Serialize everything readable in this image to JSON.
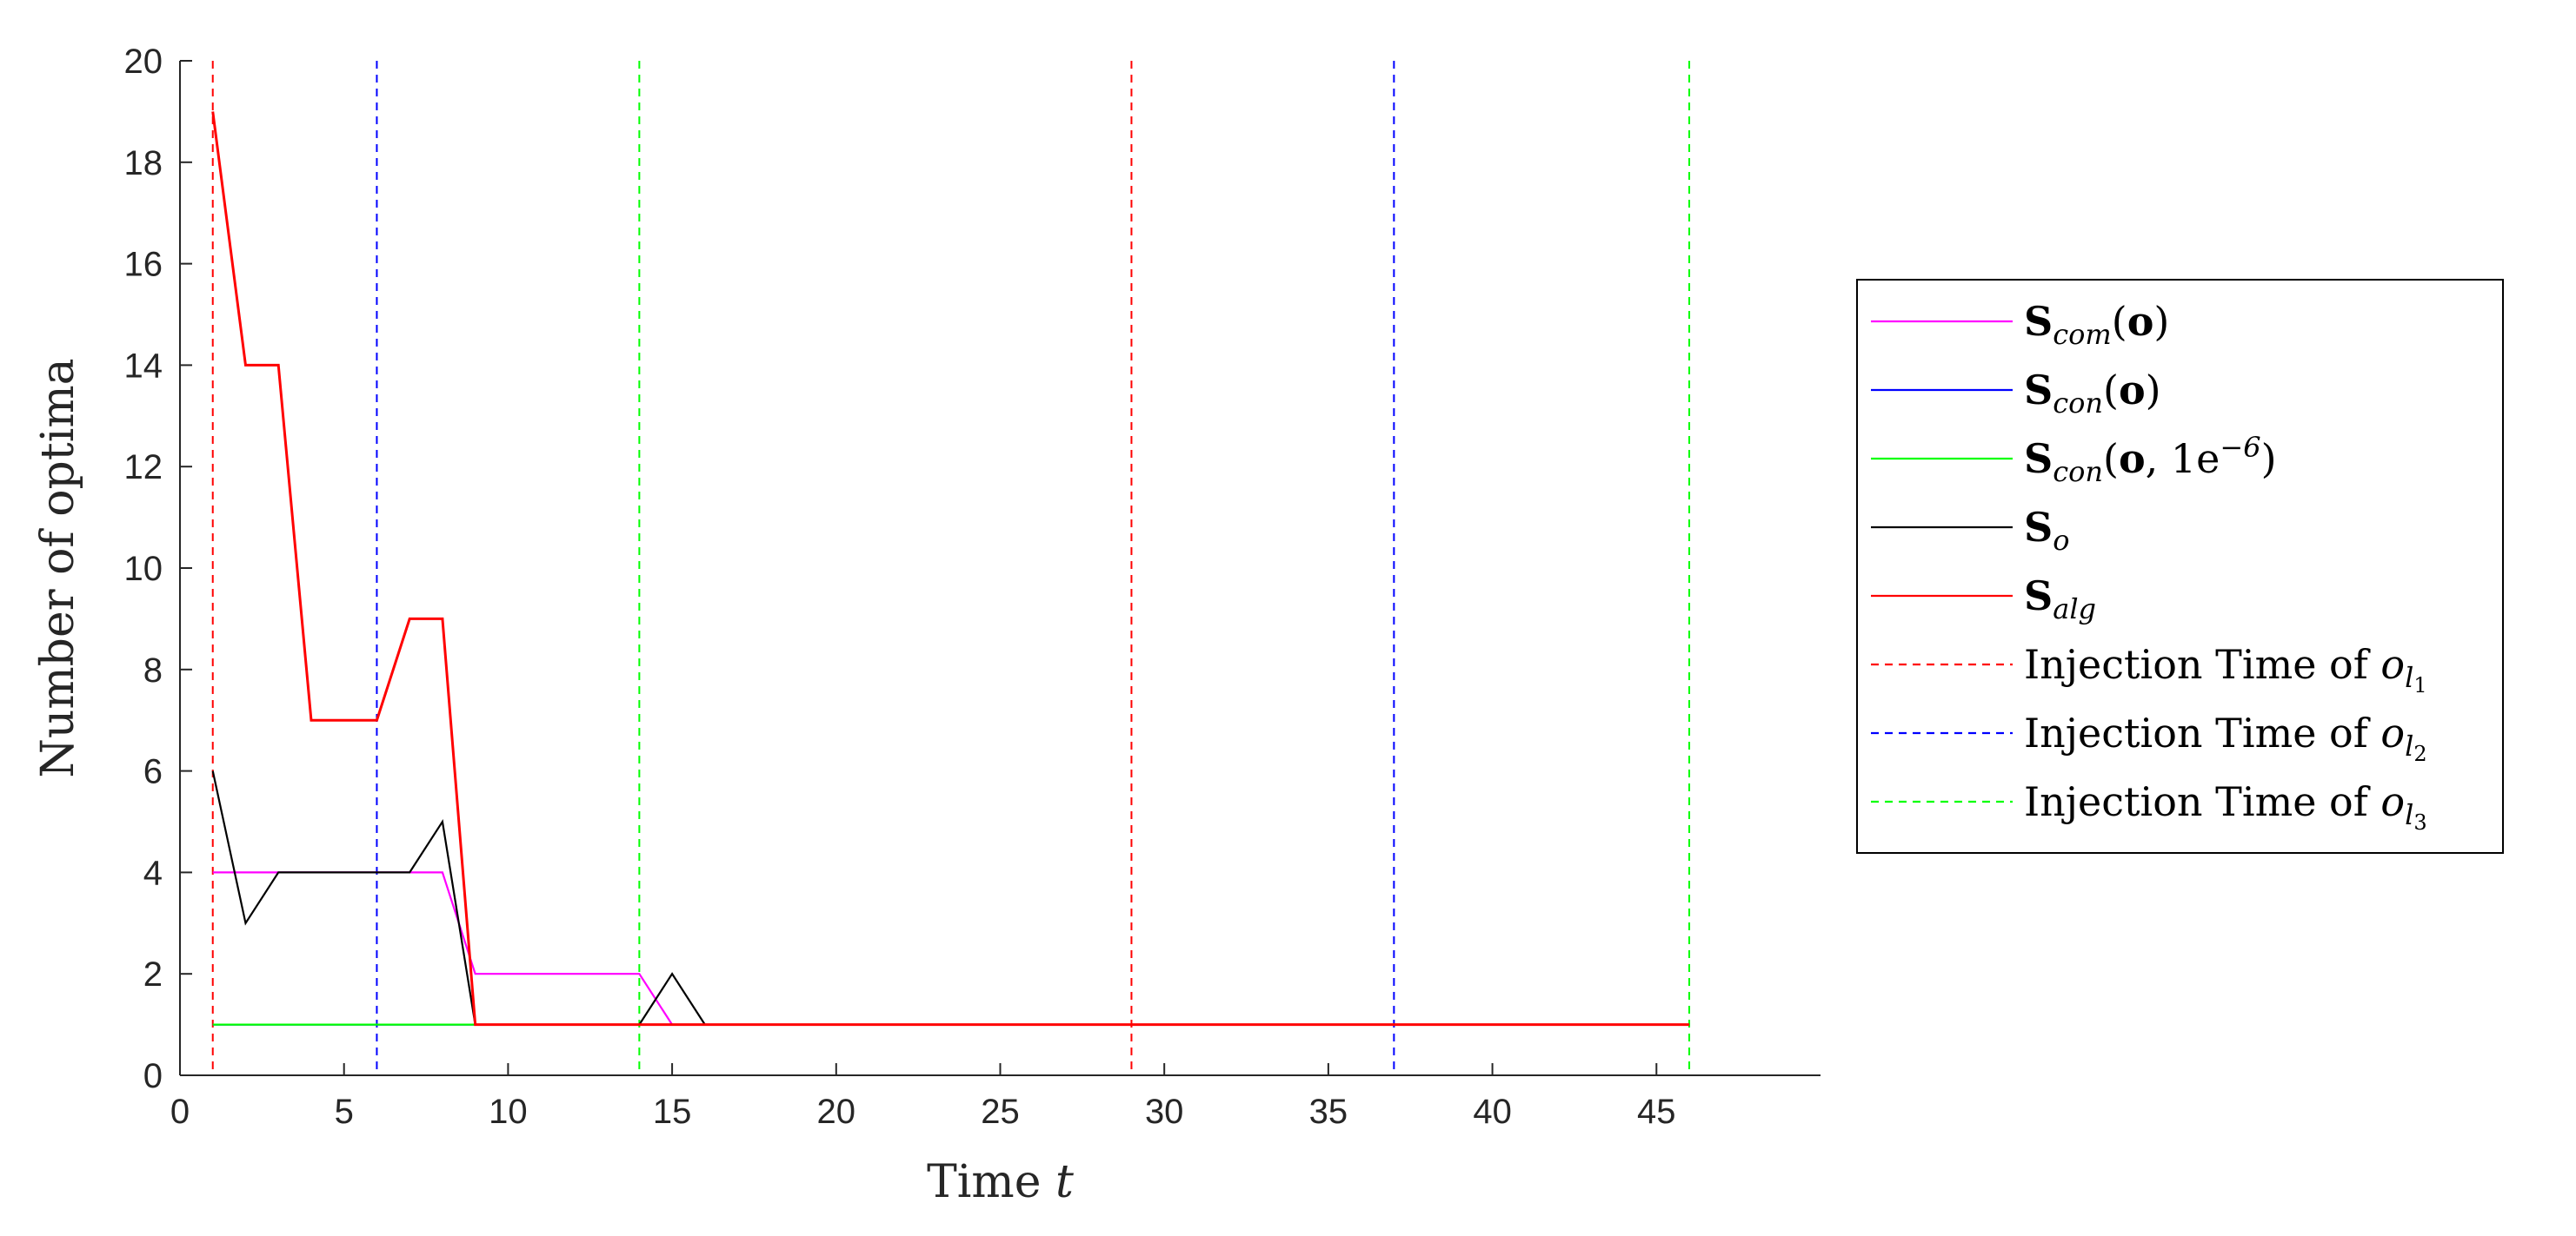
{
  "chart_data": {
    "type": "line",
    "xlabel_text": "Time",
    "xlabel_var": "t",
    "ylabel": "Number of optima",
    "xlim": [
      0,
      50
    ],
    "ylim": [
      0,
      20
    ],
    "xticks": [
      0,
      5,
      10,
      15,
      20,
      25,
      30,
      35,
      40,
      45
    ],
    "yticks": [
      0,
      2,
      4,
      6,
      8,
      10,
      12,
      14,
      16,
      18,
      20
    ],
    "grid": false,
    "legend_position": "outside-right",
    "series": [
      {
        "name": "S_com(o)",
        "color": "#ff00ff",
        "style": "solid",
        "x": [
          1,
          2,
          3,
          4,
          5,
          6,
          7,
          8,
          9,
          10,
          11,
          12,
          13,
          14,
          15,
          16,
          46
        ],
        "y": [
          4,
          4,
          4,
          4,
          4,
          4,
          4,
          4,
          2,
          2,
          2,
          2,
          2,
          2,
          1,
          1,
          1
        ]
      },
      {
        "name": "S_con(o)",
        "color": "#0000ff",
        "style": "solid",
        "x": [
          1,
          46
        ],
        "y": [
          1,
          1
        ]
      },
      {
        "name": "S_con(o, 1e^-6)",
        "color": "#00ff00",
        "style": "solid",
        "x": [
          1,
          46
        ],
        "y": [
          1,
          1
        ]
      },
      {
        "name": "S_o",
        "color": "#000000",
        "style": "solid",
        "x": [
          1,
          2,
          3,
          4,
          5,
          6,
          7,
          8,
          9,
          10,
          11,
          12,
          13,
          14,
          15,
          16,
          46
        ],
        "y": [
          6,
          3,
          4,
          4,
          4,
          4,
          4,
          5,
          1,
          1,
          1,
          1,
          1,
          1,
          2,
          1,
          1
        ]
      },
      {
        "name": "S_alg",
        "color": "#ff0000",
        "style": "solid",
        "x": [
          1,
          2,
          3,
          4,
          5,
          6,
          7,
          8,
          9,
          10,
          46
        ],
        "y": [
          19,
          14,
          14,
          7,
          7,
          7,
          9,
          9,
          1,
          1,
          1
        ]
      }
    ],
    "vlines": [
      {
        "name": "Injection Time of o_l1",
        "color": "#ff0000",
        "x": [
          1,
          29
        ]
      },
      {
        "name": "Injection Time of o_l2",
        "color": "#0000ff",
        "x": [
          6,
          37
        ]
      },
      {
        "name": "Injection Time of o_l3",
        "color": "#00ff00",
        "x": [
          14,
          46
        ]
      }
    ],
    "legend": [
      {
        "color": "#ff00ff",
        "dashed": false,
        "bold": "S",
        "sub": "com",
        "tail": "(o)"
      },
      {
        "color": "#0000ff",
        "dashed": false,
        "bold": "S",
        "sub": "con",
        "tail": "(o)"
      },
      {
        "color": "#00ff00",
        "dashed": false,
        "bold": "S",
        "sub": "con",
        "tail": "(o, 1e",
        "sup": "−6",
        "tail2": ")"
      },
      {
        "color": "#000000",
        "dashed": false,
        "bold": "S",
        "sub": "o",
        "tail": ""
      },
      {
        "color": "#ff0000",
        "dashed": false,
        "bold": "S",
        "sub": "alg",
        "tail": ""
      },
      {
        "color": "#ff0000",
        "dashed": true,
        "text": "Injection Time of ",
        "var": "o",
        "sub": "l",
        "subsub": "1"
      },
      {
        "color": "#0000ff",
        "dashed": true,
        "text": "Injection Time of ",
        "var": "o",
        "sub": "l",
        "subsub": "2"
      },
      {
        "color": "#00ff00",
        "dashed": true,
        "text": "Injection Time of ",
        "var": "o",
        "sub": "l",
        "subsub": "3"
      }
    ]
  }
}
